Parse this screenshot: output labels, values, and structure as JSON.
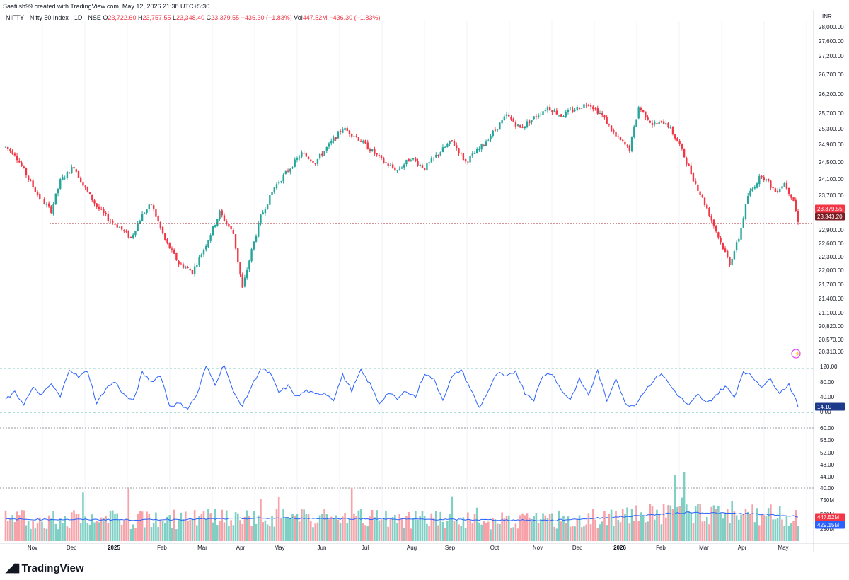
{
  "header": {
    "text": "Saatiish99 created with TradingView.com, May 12, 2026 21:38 UTC+5:30"
  },
  "legend": {
    "symbol": "NIFTY · Nifty 50 Index · 1D · NSE",
    "open_label": "O",
    "open": "23,722.60",
    "high_label": "H",
    "high": "23,757.55",
    "low_label": "L",
    "low": "23,348.40",
    "close_label": "C",
    "close": "23,379.55",
    "change": "−436.30 (−1.83%)",
    "vol_label": "Vol",
    "vol": "447.52M",
    "vol_change": "−436.30 (−1.83%)"
  },
  "brand": {
    "name": "TradingView"
  },
  "colors": {
    "up": "#26a69a",
    "down": "#f23645",
    "osc": "#2962ff",
    "vol_up": "#7fcfc4",
    "vol_down": "#f7a1a8",
    "vol_ma": "#2962ff"
  },
  "chart_data": [
    {
      "type": "candlestick",
      "currency": "INR",
      "y_ticks": [
        "28,000.00",
        "27,600.00",
        "27,200.00",
        "26,700.00",
        "26,200.00",
        "25,700.00",
        "25,300.00",
        "24,900.00",
        "24,500.00",
        "24,100.00",
        "23,700.00",
        "22,900.00",
        "22,600.00",
        "22,300.00",
        "22,000.00",
        "21,700.00",
        "21,400.00",
        "21,100.00",
        "20,820.00",
        "20,570.00",
        "20,310.00"
      ],
      "ylim": [
        20310,
        28000
      ],
      "last_price_label": "23,379.55",
      "price_line_label": "23,343.20",
      "price_line": 23343.2,
      "x_ticks": [
        "Nov",
        "Dec",
        "2025",
        "Feb",
        "Mar",
        "Apr",
        "May",
        "Jun",
        "Jul",
        "Aug",
        "Sep",
        "Oct",
        "Nov",
        "Dec",
        "2026",
        "Feb",
        "Mar",
        "Apr",
        "May"
      ],
      "anchors": [
        [
          0,
          25150
        ],
        [
          4,
          25000
        ],
        [
          10,
          24400
        ],
        [
          15,
          23950
        ],
        [
          20,
          23650
        ],
        [
          24,
          24350
        ],
        [
          30,
          24700
        ],
        [
          34,
          24250
        ],
        [
          40,
          23750
        ],
        [
          45,
          23450
        ],
        [
          50,
          23250
        ],
        [
          55,
          23000
        ],
        [
          60,
          23550
        ],
        [
          64,
          23800
        ],
        [
          70,
          22950
        ],
        [
          76,
          22400
        ],
        [
          82,
          22200
        ],
        [
          88,
          22850
        ],
        [
          94,
          23600
        ],
        [
          100,
          23100
        ],
        [
          104,
          21800
        ],
        [
          108,
          22700
        ],
        [
          112,
          23500
        ],
        [
          118,
          24200
        ],
        [
          124,
          24600
        ],
        [
          130,
          25000
        ],
        [
          136,
          24800
        ],
        [
          142,
          25200
        ],
        [
          148,
          25600
        ],
        [
          154,
          25400
        ],
        [
          160,
          25100
        ],
        [
          166,
          24800
        ],
        [
          172,
          24600
        ],
        [
          178,
          24900
        ],
        [
          184,
          24650
        ],
        [
          190,
          25000
        ],
        [
          196,
          25300
        ],
        [
          202,
          24800
        ],
        [
          208,
          25100
        ],
        [
          214,
          25500
        ],
        [
          220,
          25900
        ],
        [
          226,
          25600
        ],
        [
          232,
          25850
        ],
        [
          238,
          26100
        ],
        [
          244,
          25900
        ],
        [
          250,
          26050
        ],
        [
          256,
          26200
        ],
        [
          262,
          25900
        ],
        [
          268,
          25400
        ],
        [
          274,
          25100
        ],
        [
          278,
          26100
        ],
        [
          284,
          25700
        ],
        [
          290,
          25750
        ],
        [
          296,
          25200
        ],
        [
          302,
          24400
        ],
        [
          308,
          23700
        ],
        [
          314,
          22900
        ],
        [
          318,
          22400
        ],
        [
          322,
          23000
        ],
        [
          326,
          24000
        ],
        [
          332,
          24500
        ],
        [
          338,
          24100
        ],
        [
          342,
          24300
        ],
        [
          346,
          23900
        ],
        [
          348,
          23379.55
        ]
      ]
    },
    {
      "type": "line",
      "name": "",
      "y_ticks": [
        "120.00",
        "80.00",
        "40.00",
        "0.00"
      ],
      "ylim": [
        0,
        120
      ],
      "bands": [
        0,
        100
      ],
      "last_label": "14.10",
      "last": 14.1,
      "anchors": [
        [
          0,
          30
        ],
        [
          4,
          45
        ],
        [
          8,
          20
        ],
        [
          12,
          55
        ],
        [
          16,
          40
        ],
        [
          20,
          65
        ],
        [
          24,
          35
        ],
        [
          28,
          100
        ],
        [
          32,
          80
        ],
        [
          36,
          95
        ],
        [
          40,
          20
        ],
        [
          44,
          55
        ],
        [
          48,
          70
        ],
        [
          52,
          40
        ],
        [
          56,
          25
        ],
        [
          60,
          90
        ],
        [
          64,
          70
        ],
        [
          68,
          85
        ],
        [
          72,
          15
        ],
        [
          76,
          20
        ],
        [
          80,
          10
        ],
        [
          84,
          40
        ],
        [
          88,
          105
        ],
        [
          92,
          65
        ],
        [
          96,
          110
        ],
        [
          100,
          45
        ],
        [
          104,
          15
        ],
        [
          108,
          60
        ],
        [
          112,
          100
        ],
        [
          116,
          90
        ],
        [
          120,
          45
        ],
        [
          124,
          60
        ],
        [
          128,
          35
        ],
        [
          132,
          50
        ],
        [
          136,
          40
        ],
        [
          140,
          45
        ],
        [
          144,
          30
        ],
        [
          148,
          85
        ],
        [
          152,
          50
        ],
        [
          156,
          95
        ],
        [
          160,
          65
        ],
        [
          164,
          20
        ],
        [
          168,
          45
        ],
        [
          172,
          30
        ],
        [
          176,
          50
        ],
        [
          180,
          35
        ],
        [
          184,
          90
        ],
        [
          188,
          75
        ],
        [
          192,
          30
        ],
        [
          196,
          80
        ],
        [
          200,
          98
        ],
        [
          204,
          55
        ],
        [
          208,
          10
        ],
        [
          212,
          50
        ],
        [
          216,
          90
        ],
        [
          220,
          80
        ],
        [
          224,
          95
        ],
        [
          228,
          45
        ],
        [
          232,
          30
        ],
        [
          236,
          85
        ],
        [
          240,
          90
        ],
        [
          244,
          50
        ],
        [
          248,
          30
        ],
        [
          252,
          75
        ],
        [
          256,
          40
        ],
        [
          260,
          95
        ],
        [
          264,
          25
        ],
        [
          268,
          80
        ],
        [
          272,
          20
        ],
        [
          276,
          15
        ],
        [
          280,
          45
        ],
        [
          284,
          70
        ],
        [
          288,
          90
        ],
        [
          292,
          60
        ],
        [
          296,
          35
        ],
        [
          300,
          15
        ],
        [
          304,
          40
        ],
        [
          308,
          20
        ],
        [
          312,
          40
        ],
        [
          316,
          60
        ],
        [
          320,
          35
        ],
        [
          324,
          95
        ],
        [
          328,
          80
        ],
        [
          332,
          60
        ],
        [
          336,
          75
        ],
        [
          340,
          45
        ],
        [
          344,
          65
        ],
        [
          348,
          14.1
        ]
      ]
    },
    {
      "type": "line",
      "name": "",
      "y_ticks": [
        "60.00",
        "56.00",
        "52.00",
        "48.00",
        "44.00",
        "40.00"
      ],
      "ylim": [
        40,
        60
      ],
      "anchors": []
    },
    {
      "type": "bar",
      "name": "Volume",
      "y_ticks": [
        "750M",
        "500M",
        "250M"
      ],
      "ylim": [
        0,
        800
      ],
      "vol_label": "447.52M",
      "vol_ma_label": "429.15M",
      "base_level": 380,
      "ma_anchors": [
        [
          0,
          380
        ],
        [
          60,
          370
        ],
        [
          120,
          400
        ],
        [
          180,
          380
        ],
        [
          240,
          360
        ],
        [
          270,
          420
        ],
        [
          300,
          500
        ],
        [
          330,
          470
        ],
        [
          348,
          429.15
        ]
      ]
    }
  ]
}
